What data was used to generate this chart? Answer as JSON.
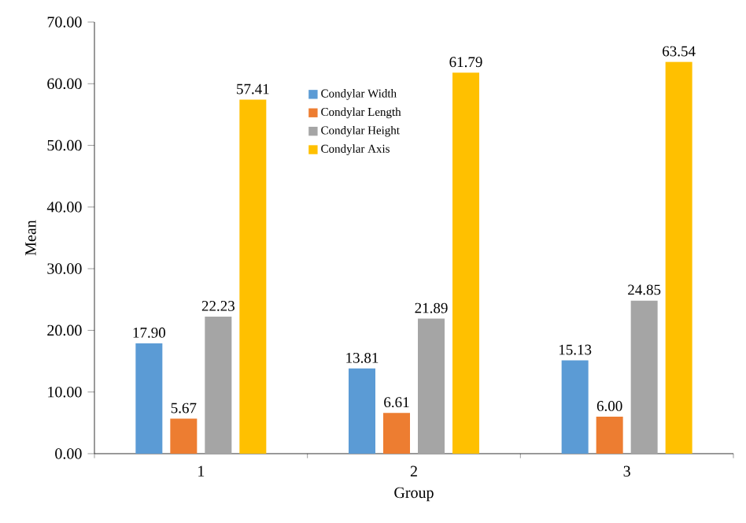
{
  "chart_data": {
    "type": "bar",
    "xlabel": "Group",
    "ylabel": "Mean",
    "categories": [
      "1",
      "2",
      "3"
    ],
    "series": [
      {
        "name": "Condylar Width",
        "color": "#5b9bd5",
        "values": [
          17.9,
          13.81,
          15.13
        ],
        "value_labels": [
          "17.90",
          "13.81",
          "15.13"
        ]
      },
      {
        "name": "Condylar Length",
        "color": "#ed7d31",
        "values": [
          5.67,
          6.61,
          6.0
        ],
        "value_labels": [
          "5.67",
          "6.61",
          "6.00"
        ]
      },
      {
        "name": "Condylar Height",
        "color": "#a5a5a5",
        "values": [
          22.23,
          21.89,
          24.85
        ],
        "value_labels": [
          "22.23",
          "21.89",
          "24.85"
        ]
      },
      {
        "name": "Condylar Axis",
        "color": "#ffc000",
        "values": [
          57.41,
          61.79,
          63.54
        ],
        "value_labels": [
          "57.41",
          "61.79",
          "63.54"
        ]
      }
    ],
    "ylim": [
      0,
      70
    ],
    "yticks": [
      {
        "value": 0,
        "label": "0.00"
      },
      {
        "value": 10,
        "label": "10.00"
      },
      {
        "value": 20,
        "label": "20.00"
      },
      {
        "value": 30,
        "label": "30.00"
      },
      {
        "value": 40,
        "label": "40.00"
      },
      {
        "value": 50,
        "label": "50.00"
      },
      {
        "value": 60,
        "label": "60.00"
      },
      {
        "value": 70,
        "label": "70.00"
      }
    ],
    "grid": false,
    "legend": "top"
  }
}
